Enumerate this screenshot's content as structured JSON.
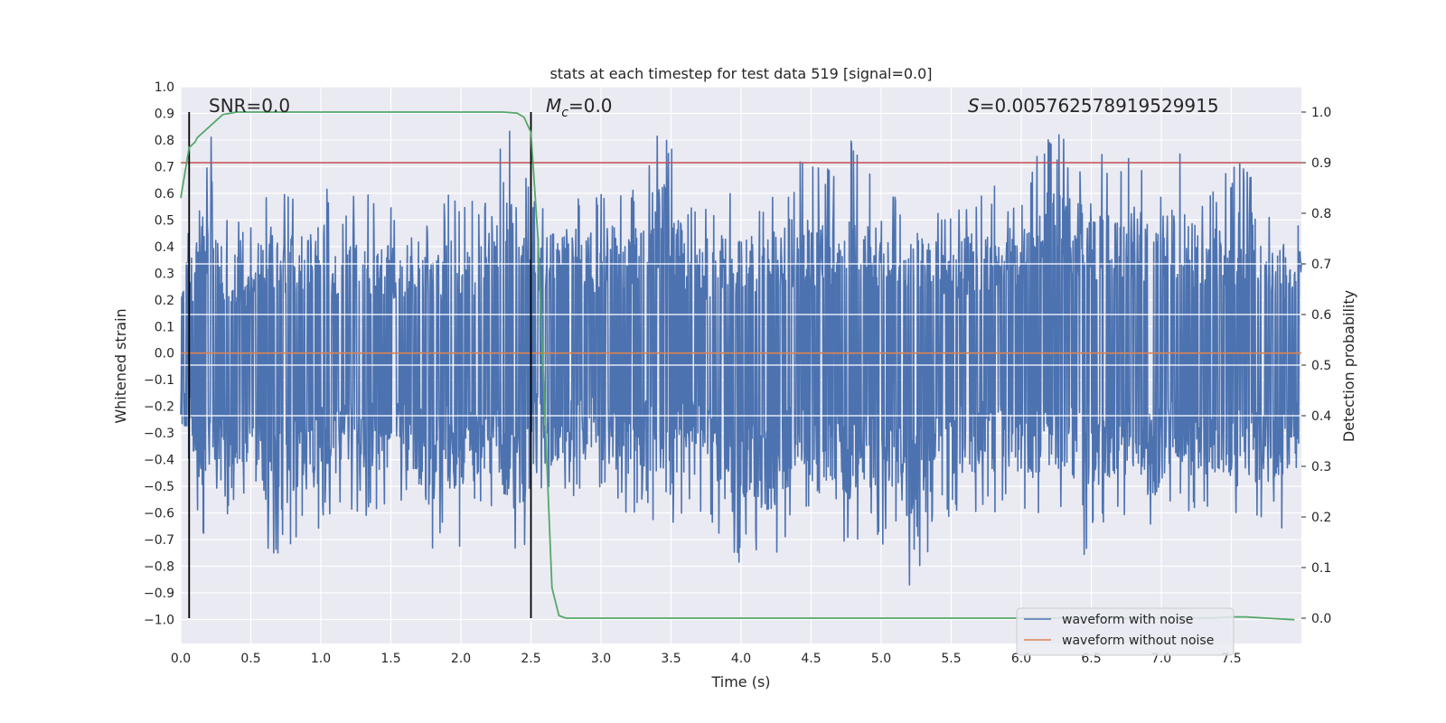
{
  "chart_data": {
    "type": "line",
    "title": "stats at each timestep for test data 519 [signal=0.0]",
    "xlabel": "Time (s)",
    "ylabel": "Whitened strain",
    "ylabel_right": "Detection probability",
    "xlim": [
      0.0,
      8.0
    ],
    "ylim": [
      -1.09,
      1.0
    ],
    "ylim_right": [
      -0.05,
      1.05
    ],
    "x_ticks": [
      "0.0",
      "0.5",
      "1.0",
      "1.5",
      "2.0",
      "2.5",
      "3.0",
      "3.5",
      "4.0",
      "4.5",
      "5.0",
      "5.5",
      "6.0",
      "6.5",
      "7.0",
      "7.5"
    ],
    "y_ticks": [
      "1.0",
      "0.9",
      "0.8",
      "0.7",
      "0.6",
      "0.5",
      "0.4",
      "0.3",
      "0.2",
      "0.1",
      "0.0",
      "−0.1",
      "−0.2",
      "−0.3",
      "−0.4",
      "−0.5",
      "−0.6",
      "−0.7",
      "−0.8",
      "−0.9",
      "−1.0"
    ],
    "y_ticks_right": [
      "1.0",
      "0.9",
      "0.8",
      "0.7",
      "0.6",
      "0.5",
      "0.4",
      "0.3",
      "0.2",
      "0.1",
      "0.0"
    ],
    "grid": true,
    "legend_position": "lower-right",
    "annotations": {
      "snr": "SNR=0.0",
      "mc_symbol": "M",
      "mc_subscript": "c",
      "mc_value": "=0.0",
      "s_symbol": "S",
      "s_value": "=0.005762578919529915"
    },
    "series": [
      {
        "name": "waveform with noise",
        "color": "#4c72b0",
        "axis": "left",
        "kind": "noise",
        "upper_envelope": [
          [
            0.0,
            0.44
          ],
          [
            0.1,
            0.53
          ],
          [
            0.23,
            0.88
          ],
          [
            0.3,
            0.53
          ],
          [
            0.5,
            0.47
          ],
          [
            0.64,
            0.68
          ],
          [
            0.8,
            0.6
          ],
          [
            1.0,
            0.68
          ],
          [
            1.1,
            0.55
          ],
          [
            1.2,
            0.72
          ],
          [
            1.4,
            0.55
          ],
          [
            1.55,
            0.55
          ],
          [
            1.7,
            0.61
          ],
          [
            1.8,
            0.45
          ],
          [
            1.9,
            0.6
          ],
          [
            2.0,
            0.55
          ],
          [
            2.15,
            0.59
          ],
          [
            2.3,
            0.86
          ],
          [
            2.4,
            0.84
          ],
          [
            2.5,
            0.58
          ],
          [
            2.7,
            0.63
          ],
          [
            2.9,
            0.62
          ],
          [
            3.05,
            0.64
          ],
          [
            3.2,
            0.62
          ],
          [
            3.35,
            0.78
          ],
          [
            3.43,
            0.91
          ],
          [
            3.6,
            0.6
          ],
          [
            3.8,
            0.57
          ],
          [
            3.95,
            0.62
          ],
          [
            4.2,
            0.59
          ],
          [
            4.3,
            0.66
          ],
          [
            4.45,
            0.74
          ],
          [
            4.6,
            0.68
          ],
          [
            4.7,
            0.79
          ],
          [
            4.85,
            0.82
          ],
          [
            5.0,
            0.58
          ],
          [
            5.2,
            0.61
          ],
          [
            5.3,
            0.6
          ],
          [
            5.5,
            0.57
          ],
          [
            5.7,
            0.64
          ],
          [
            5.9,
            0.62
          ],
          [
            6.05,
            0.66
          ],
          [
            6.2,
            0.86
          ],
          [
            6.35,
            0.78
          ],
          [
            6.45,
            0.79
          ],
          [
            6.55,
            0.78
          ],
          [
            6.7,
            0.7
          ],
          [
            6.85,
            0.78
          ],
          [
            7.0,
            0.68
          ],
          [
            7.15,
            0.79
          ],
          [
            7.3,
            0.57
          ],
          [
            7.5,
            0.7
          ],
          [
            7.65,
            0.73
          ],
          [
            7.8,
            0.56
          ],
          [
            8.0,
            0.53
          ]
        ],
        "lower_envelope": [
          [
            0.0,
            -0.34
          ],
          [
            0.1,
            -0.55
          ],
          [
            0.18,
            -0.75
          ],
          [
            0.27,
            -0.67
          ],
          [
            0.4,
            -0.55
          ],
          [
            0.5,
            -0.6
          ],
          [
            0.62,
            -0.76
          ],
          [
            0.66,
            -0.88
          ],
          [
            0.8,
            -0.7
          ],
          [
            1.0,
            -0.68
          ],
          [
            1.1,
            -0.6
          ],
          [
            1.3,
            -0.6
          ],
          [
            1.4,
            -0.64
          ],
          [
            1.5,
            -0.55
          ],
          [
            1.62,
            -0.6
          ],
          [
            1.8,
            -0.79
          ],
          [
            1.9,
            -0.62
          ],
          [
            1.98,
            -0.86
          ],
          [
            2.1,
            -0.62
          ],
          [
            2.2,
            -0.59
          ],
          [
            2.3,
            -0.72
          ],
          [
            2.45,
            -0.86
          ],
          [
            2.5,
            -0.4
          ],
          [
            2.62,
            -0.58
          ],
          [
            2.8,
            -0.56
          ],
          [
            3.0,
            -0.54
          ],
          [
            3.2,
            -0.62
          ],
          [
            3.3,
            -0.58
          ],
          [
            3.5,
            -0.72
          ],
          [
            3.6,
            -0.6
          ],
          [
            3.8,
            -0.64
          ],
          [
            3.97,
            -0.86
          ],
          [
            4.05,
            -0.72
          ],
          [
            4.2,
            -0.82
          ],
          [
            4.4,
            -0.6
          ],
          [
            4.6,
            -0.75
          ],
          [
            4.8,
            -0.76
          ],
          [
            4.9,
            -0.64
          ],
          [
            5.0,
            -0.8
          ],
          [
            5.1,
            -0.64
          ],
          [
            5.23,
            -1.0
          ],
          [
            5.4,
            -0.62
          ],
          [
            5.6,
            -0.62
          ],
          [
            5.75,
            -0.6
          ],
          [
            5.9,
            -0.62
          ],
          [
            6.0,
            -0.66
          ],
          [
            6.2,
            -0.58
          ],
          [
            6.35,
            -0.6
          ],
          [
            6.45,
            -0.79
          ],
          [
            6.6,
            -0.64
          ],
          [
            6.7,
            -0.6
          ],
          [
            6.8,
            -0.68
          ],
          [
            6.95,
            -0.72
          ],
          [
            7.05,
            -0.58
          ],
          [
            7.25,
            -0.62
          ],
          [
            7.4,
            -0.6
          ],
          [
            7.55,
            -0.68
          ],
          [
            7.7,
            -0.64
          ],
          [
            7.8,
            -0.81
          ],
          [
            7.9,
            -0.58
          ],
          [
            8.0,
            -0.64
          ]
        ]
      },
      {
        "name": "waveform without noise",
        "color": "#dd8452",
        "axis": "left",
        "x": [
          0.0,
          8.0
        ],
        "y": [
          0.0,
          0.0
        ]
      },
      {
        "color": "#55a868",
        "axis": "right",
        "x": [
          0.0,
          0.03,
          0.06,
          0.1,
          0.12,
          0.2,
          0.3,
          0.4,
          0.5,
          1.0,
          1.5,
          2.0,
          2.2,
          2.3,
          2.4,
          2.45,
          2.5,
          2.55,
          2.6,
          2.65,
          2.7,
          2.75,
          3.0,
          4.0,
          5.0,
          6.0,
          7.0,
          7.35,
          7.5,
          7.6,
          7.75,
          7.95
        ],
        "y": [
          0.83,
          0.88,
          0.93,
          0.94,
          0.95,
          0.97,
          0.995,
          1.0,
          1.0,
          1.0,
          1.0,
          1.0,
          1.0,
          1.0,
          0.998,
          0.99,
          0.96,
          0.75,
          0.4,
          0.06,
          0.005,
          0.0,
          0.0,
          0.0,
          0.0,
          0.0,
          0.0,
          0.0,
          0.0025,
          0.0025,
          0.0,
          -0.003
        ]
      }
    ],
    "hlines": [
      {
        "y": 0.9,
        "axis": "right",
        "color": "#c44e52"
      }
    ],
    "vlines": [
      {
        "x": 0.06,
        "color": "#000000"
      },
      {
        "x": 2.5,
        "color": "#000000"
      }
    ]
  }
}
